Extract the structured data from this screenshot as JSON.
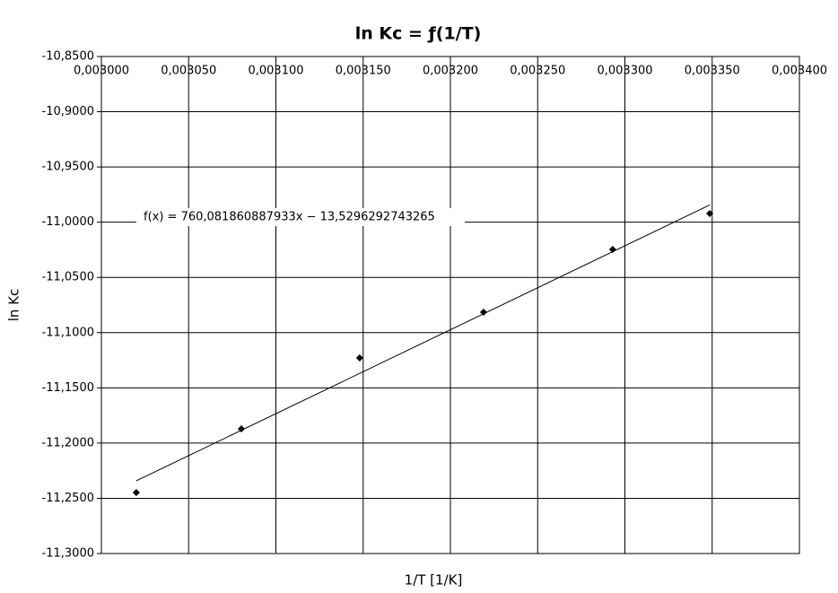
{
  "chart_data": {
    "type": "scatter",
    "title": "ln Kc = ƒ(1/T)",
    "x_label": "1/T [1/K]",
    "y_label": "ln Kc",
    "x": [
      0.00302,
      0.0030802,
      0.003148,
      0.003219,
      0.003293,
      0.0033486
    ],
    "series": [
      {
        "name": "ln Kc",
        "color": "#000000",
        "values": [
          -11.2448,
          -11.1871,
          -11.1229,
          -11.0815,
          -11.0246,
          -10.9921
        ]
      }
    ],
    "trendline": {
      "label": "f(x) = 760,081860887933x − 13,5296292743265",
      "slope": 760.081860887933,
      "intercept": -13.5296292743265
    },
    "xlim": [
      0.003,
      0.0034
    ],
    "xticks": [
      {
        "value": 0.003,
        "label": "0,003000"
      },
      {
        "value": 0.00305,
        "label": "0,003050"
      },
      {
        "value": 0.0031,
        "label": "0,003100"
      },
      {
        "value": 0.00315,
        "label": "0,003150"
      },
      {
        "value": 0.0032,
        "label": "0,003200"
      },
      {
        "value": 0.00325,
        "label": "0,003250"
      },
      {
        "value": 0.0033,
        "label": "0,003300"
      },
      {
        "value": 0.00335,
        "label": "0,003350"
      },
      {
        "value": 0.0034,
        "label": "0,003400"
      }
    ],
    "ylim": [
      -11.3,
      -10.85
    ],
    "yticks": [
      {
        "value": -10.85,
        "label": "-10,8500"
      },
      {
        "value": -10.9,
        "label": "-10,9000"
      },
      {
        "value": -10.95,
        "label": "-10,9500"
      },
      {
        "value": -11.0,
        "label": "-11,0000"
      },
      {
        "value": -11.05,
        "label": "-11,0500"
      },
      {
        "value": -11.1,
        "label": "-11,1000"
      },
      {
        "value": -11.15,
        "label": "-11,1500"
      },
      {
        "value": -11.2,
        "label": "-11,2000"
      },
      {
        "value": -11.25,
        "label": "-11,2500"
      },
      {
        "value": -11.3,
        "label": "-11,3000"
      }
    ],
    "grid": true
  }
}
